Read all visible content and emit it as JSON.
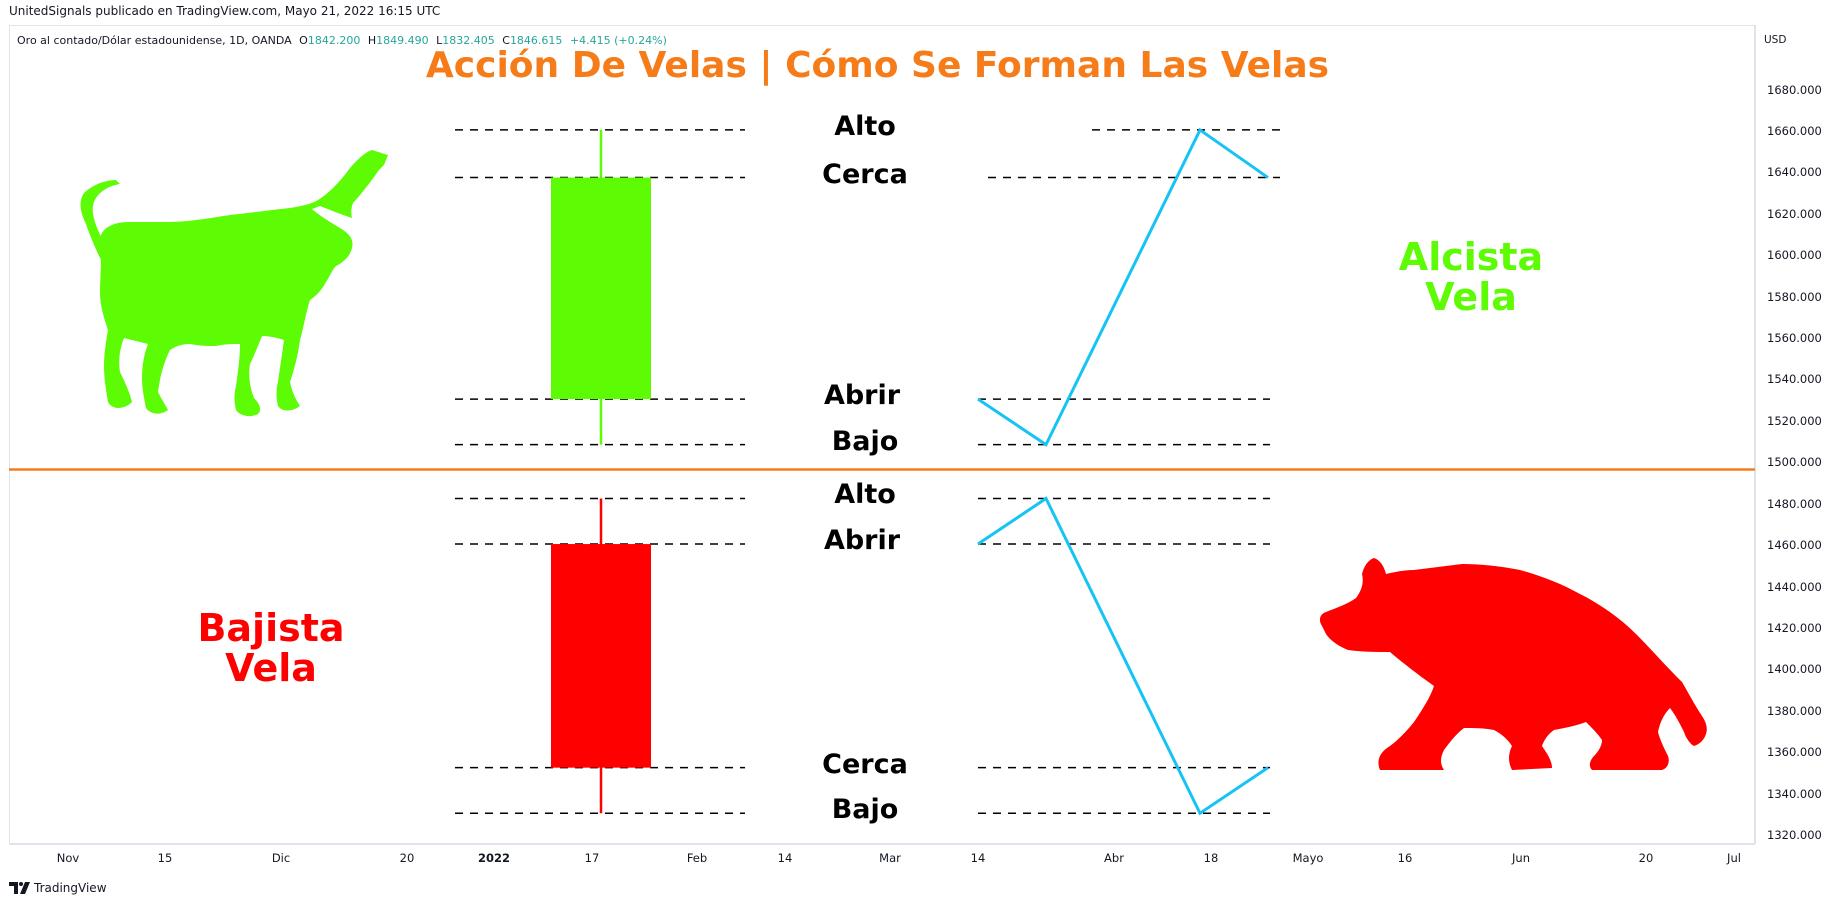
{
  "header": {
    "publisher": "UnitedSignals publicado en TradingView.com, Mayo 21, 2022 16:15 UTC"
  },
  "legend": {
    "symbol": "Oro al contado/Dólar estadounidense, 1D, OANDA",
    "o_label": "O",
    "o_value": "1842.200",
    "h_label": "H",
    "h_value": "1849.490",
    "l_label": "L",
    "l_value": "1832.405",
    "c_label": "C",
    "c_value": "1846.615",
    "change": "+4.415 (+0.24%)"
  },
  "footer": {
    "brand": "TradingView"
  },
  "colors": {
    "title": "#f57c18",
    "bullish": "#5dfb04",
    "bearish": "#ff0000",
    "line": "#16c3f5",
    "divider": "#f57c18",
    "legend_value": "#26a69a"
  },
  "chart_data": {
    "type": "candlestick-annotation",
    "title": "Acción De Velas | Cómo Se Forman Las Velas",
    "currency": "USD",
    "price_axis_ticks": [
      "1680.000",
      "1660.000",
      "1640.000",
      "1620.000",
      "1600.000",
      "1580.000",
      "1560.000",
      "1540.000",
      "1520.000",
      "1500.000",
      "1480.000",
      "1460.000",
      "1440.000",
      "1420.000",
      "1400.000",
      "1380.000",
      "1360.000",
      "1340.000",
      "1320.000"
    ],
    "time_axis_ticks": [
      {
        "label": "Nov",
        "bold": false
      },
      {
        "label": "15",
        "bold": false
      },
      {
        "label": "Dic",
        "bold": false
      },
      {
        "label": "20",
        "bold": false
      },
      {
        "label": "2022",
        "bold": true
      },
      {
        "label": "17",
        "bold": false
      },
      {
        "label": "Feb",
        "bold": false
      },
      {
        "label": "14",
        "bold": false
      },
      {
        "label": "Mar",
        "bold": false
      },
      {
        "label": "14",
        "bold": false
      },
      {
        "label": "Abr",
        "bold": false
      },
      {
        "label": "18",
        "bold": false
      },
      {
        "label": "Mayo",
        "bold": false
      },
      {
        "label": "16",
        "bold": false
      },
      {
        "label": "Jun",
        "bold": false
      },
      {
        "label": "20",
        "bold": false
      },
      {
        "label": "Jul",
        "bold": false
      }
    ],
    "divider_price": 1497,
    "bullish": {
      "name_line1": "Alcista",
      "name_line2": "Vela",
      "open": 1531,
      "high": 1661,
      "low": 1509,
      "close": 1638,
      "labels": {
        "high": "Alto",
        "close": "Cerca",
        "open": "Abrir",
        "low": "Bajo"
      },
      "path": [
        1531,
        1509,
        1661,
        1638
      ]
    },
    "bearish": {
      "name_line1": "Bajista",
      "name_line2": "Vela",
      "open": 1461,
      "high": 1483,
      "low": 1331,
      "close": 1353,
      "labels": {
        "high": "Alto",
        "open": "Abrir",
        "close": "Cerca",
        "low": "Bajo"
      },
      "path": [
        1461,
        1483,
        1331,
        1353
      ]
    },
    "icons": [
      "bull-icon",
      "bear-icon"
    ]
  }
}
